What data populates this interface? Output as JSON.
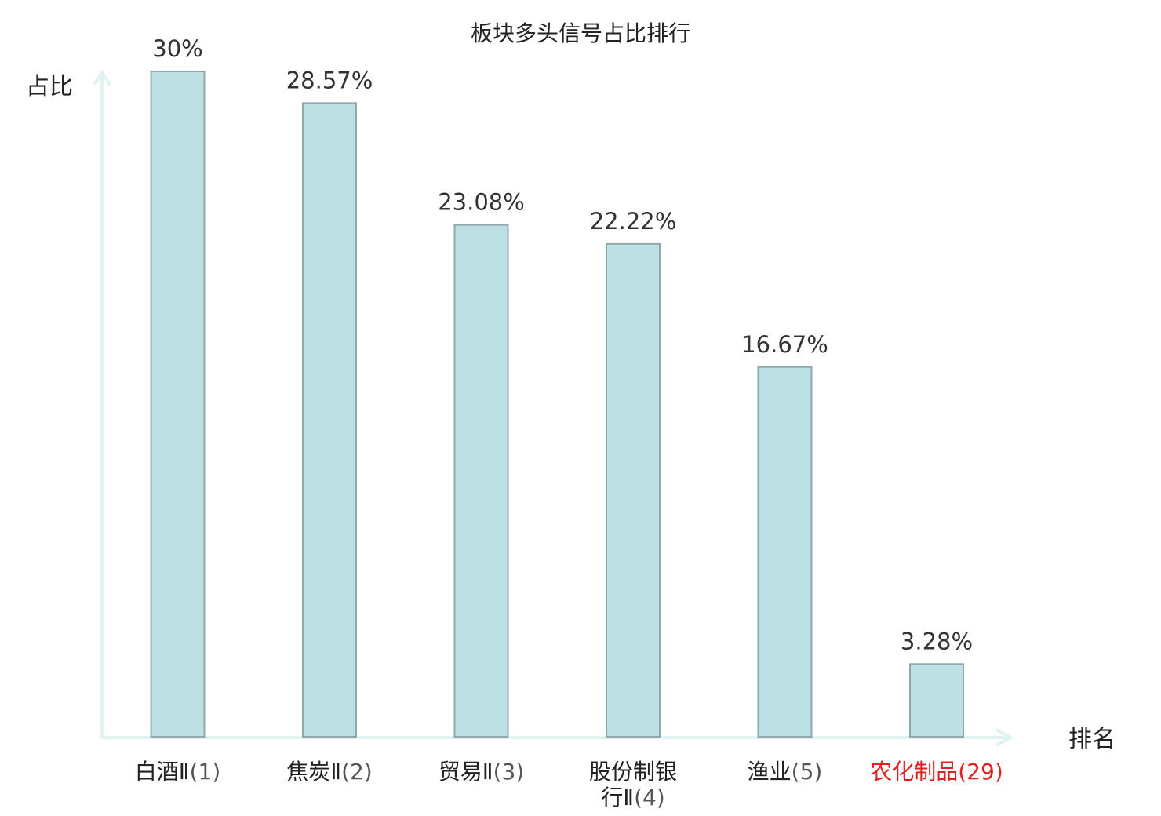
{
  "chart_data": {
    "type": "bar",
    "title": "板块多头信号占比排行",
    "ylabel": "占比",
    "xlabel": "排名",
    "categories": [
      {
        "name": "白酒Ⅱ",
        "rank": "(1)",
        "lines": [
          {
            "name": "白酒Ⅱ",
            "rank": "(1)"
          }
        ],
        "highlight": false
      },
      {
        "name": "焦炭Ⅱ",
        "rank": "(2)",
        "lines": [
          {
            "name": "焦炭Ⅱ",
            "rank": "(2)"
          }
        ],
        "highlight": false
      },
      {
        "name": "贸易Ⅱ",
        "rank": "(3)",
        "lines": [
          {
            "name": "贸易Ⅱ",
            "rank": "(3)"
          }
        ],
        "highlight": false
      },
      {
        "name": "股份制银行Ⅱ",
        "rank": "(4)",
        "lines": [
          {
            "name": "股份制银",
            "rank": ""
          },
          {
            "name": "行Ⅱ",
            "rank": "(4)"
          }
        ],
        "highlight": false
      },
      {
        "name": "渔业",
        "rank": "(5)",
        "lines": [
          {
            "name": "渔业",
            "rank": "(5)"
          }
        ],
        "highlight": false
      },
      {
        "name": "农化制品",
        "rank": "(29)",
        "lines": [
          {
            "name": "农化制品",
            "rank": "(29)"
          }
        ],
        "highlight": true
      }
    ],
    "values": [
      30,
      28.57,
      23.08,
      22.22,
      16.67,
      3.28
    ],
    "value_labels": [
      "30%",
      "28.57%",
      "23.08%",
      "22.22%",
      "16.67%",
      "3.28%"
    ],
    "ylim": [
      0,
      30
    ],
    "grid": false,
    "legend": "none"
  },
  "colors": {
    "bar_fill": "#bce0e3",
    "bar_stroke": "#8fa8aa",
    "axis": "#e0f3f0",
    "text": "#222222",
    "rank_text": "#555555",
    "highlight": "#e02020"
  }
}
